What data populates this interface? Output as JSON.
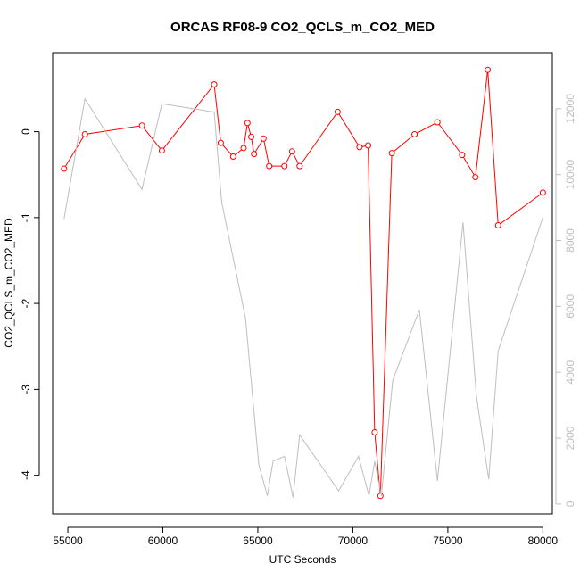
{
  "chart_data": {
    "type": "line",
    "title": "ORCAS RF08-9 CO2_QCLS_m_CO2_MED",
    "xlabel": "UTC Seconds",
    "ylabel": "CO2_QCLS_m_CO2_MED",
    "xlim": [
      54200,
      80500
    ],
    "ylim": [
      -4.45,
      0.92
    ],
    "y2lim": [
      -300,
      13700
    ],
    "x_ticks": [
      55000,
      60000,
      65000,
      70000,
      75000,
      80000
    ],
    "y_ticks": [
      -4,
      -3,
      -2,
      -1,
      0
    ],
    "y2_ticks": [
      0,
      2000,
      4000,
      6000,
      8000,
      10000,
      12000
    ],
    "colors": {
      "primary": "#ff0000",
      "secondary": "#bebebe",
      "axis": "#000000",
      "axis2": "#bebebe"
    },
    "series": [
      {
        "axis": "left",
        "style": "line+points",
        "x": [
          54800,
          55900,
          58900,
          59950,
          62700,
          63050,
          63700,
          64250,
          64450,
          64650,
          64800,
          65300,
          65600,
          66400,
          66800,
          67200,
          69200,
          70350,
          70800,
          71150,
          71450,
          72050,
          73250,
          74450,
          75750,
          76450,
          77100,
          77650,
          80000
        ],
        "y": [
          -0.43,
          -0.03,
          0.07,
          -0.22,
          0.55,
          -0.13,
          -0.29,
          -0.19,
          0.1,
          -0.06,
          -0.26,
          -0.08,
          -0.4,
          -0.4,
          -0.23,
          -0.4,
          0.23,
          -0.18,
          -0.16,
          -3.5,
          -4.24,
          -0.25,
          -0.03,
          0.11,
          -0.27,
          -0.53,
          0.72,
          -1.09,
          -0.71
        ]
      },
      {
        "axis": "right",
        "style": "line",
        "x": [
          54800,
          55900,
          58900,
          59950,
          62700,
          63100,
          64350,
          65050,
          65500,
          65800,
          66400,
          66850,
          67200,
          69250,
          70300,
          70850,
          71150,
          71500,
          72100,
          73500,
          74450,
          75800,
          76500,
          77150,
          77650,
          80000
        ],
        "y": [
          8650,
          12300,
          9550,
          12150,
          11900,
          9150,
          5650,
          1200,
          250,
          1300,
          1450,
          200,
          2100,
          400,
          1450,
          250,
          1300,
          250,
          3750,
          5900,
          700,
          8550,
          3300,
          750,
          4650,
          8700
        ]
      }
    ]
  }
}
